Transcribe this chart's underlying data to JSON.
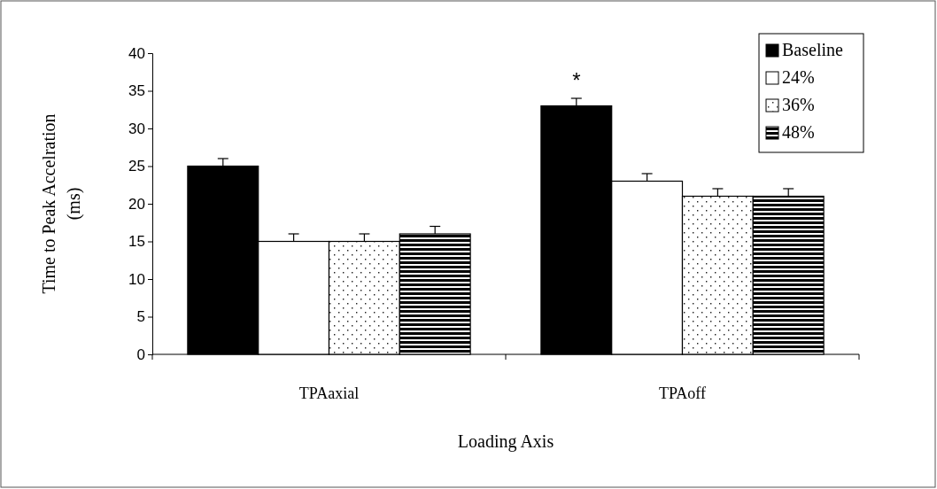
{
  "chart_data": {
    "type": "bar",
    "xlabel": "Loading Axis",
    "ylabel": "Time to Peak Accelration (ms)",
    "categories": [
      "TPAaxial",
      "TPAoff"
    ],
    "series": [
      {
        "name": "Baseline",
        "color": "#000000",
        "values": [
          25,
          33
        ],
        "errors": [
          [
            25,
            26
          ],
          [
            33,
            34
          ]
        ]
      },
      {
        "name": "24%",
        "color": "#ffffff",
        "values": [
          15,
          23
        ],
        "errors": [
          [
            15,
            16
          ],
          [
            23,
            24
          ]
        ]
      },
      {
        "name": "36%",
        "color": "#ffffff",
        "values": [
          15,
          21
        ],
        "errors": [
          [
            15,
            16
          ],
          [
            21,
            22
          ]
        ]
      },
      {
        "name": "48%",
        "color": "#000000",
        "values": [
          16,
          21
        ],
        "errors": [
          [
            16,
            17
          ],
          [
            21,
            22
          ]
        ]
      }
    ],
    "ylim": [
      0,
      40
    ],
    "yticks": [
      0,
      5,
      10,
      15,
      20,
      25,
      30,
      35,
      40
    ],
    "grid": false,
    "legend": "top right",
    "annotations": [
      "*"
    ]
  }
}
